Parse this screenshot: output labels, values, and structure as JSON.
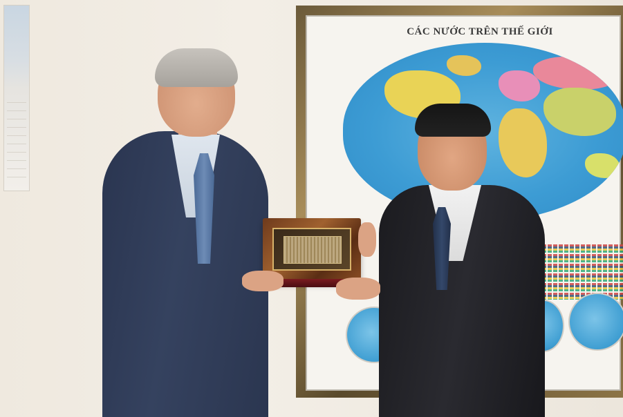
{
  "scene": {
    "description_hidden": false,
    "map": {
      "title": "CÁC NƯỚC TRÊN THẾ GIỚI"
    },
    "colors": {
      "wall": "#efe9df",
      "map_frame": "#8c7446",
      "ocean": "#3d9cd4",
      "left_suit": "#2f3b57",
      "right_suit": "#1f1f24",
      "plaque_wood": "#8a4e24"
    }
  }
}
